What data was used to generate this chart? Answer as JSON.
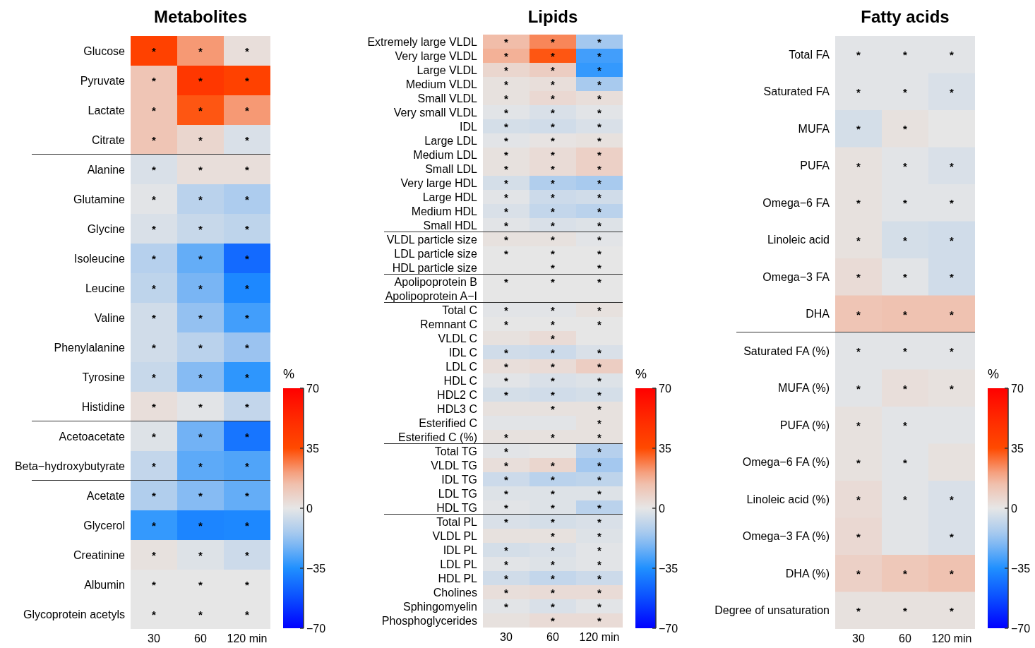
{
  "chart_data": [
    {
      "type": "heatmap",
      "title": "Metabolites",
      "categories": [
        "30",
        "60",
        "120 min"
      ],
      "y_categories": [
        "Glucose",
        "Pyruvate",
        "Lactate",
        "Citrate",
        "Alanine",
        "Glutamine",
        "Glycine",
        "Isoleucine",
        "Leucine",
        "Valine",
        "Phenylalanine",
        "Tyrosine",
        "Histidine",
        "Acetoacetate",
        "Beta−hydroxybutyrate",
        "Acetate",
        "Glycerol",
        "Creatinine",
        "Albumin",
        "Glycoprotein acetyls"
      ],
      "cells": [
        [
          40,
          22,
          3
        ],
        [
          12,
          45,
          40
        ],
        [
          12,
          33,
          22
        ],
        [
          12,
          6,
          -3
        ],
        [
          -3,
          3,
          3
        ],
        [
          -1,
          -10,
          -13
        ],
        [
          -3,
          -7,
          -9
        ],
        [
          -11,
          -25,
          -45
        ],
        [
          -9,
          -22,
          -37
        ],
        [
          -5,
          -18,
          -30
        ],
        [
          -5,
          -10,
          -17
        ],
        [
          -7,
          -20,
          -33
        ],
        [
          3,
          -1,
          -8
        ],
        [
          -2,
          -23,
          -42
        ],
        [
          -8,
          -26,
          -28
        ],
        [
          -12,
          -20,
          -25
        ],
        [
          -32,
          -38,
          -37
        ],
        [
          2,
          -2,
          -6
        ],
        [
          0,
          0,
          0
        ],
        [
          0,
          0,
          0
        ]
      ],
      "cell_labels": [
        [
          "*",
          "*",
          "*"
        ],
        [
          "*",
          "*",
          "*"
        ],
        [
          "*",
          "*",
          "*"
        ],
        [
          "*",
          "*",
          "*"
        ],
        [
          "*",
          "*",
          "*"
        ],
        [
          "*",
          "*",
          "*"
        ],
        [
          "*",
          "*",
          "*"
        ],
        [
          "*",
          "*",
          "*"
        ],
        [
          "*",
          "*",
          "*"
        ],
        [
          "*",
          "*",
          "*"
        ],
        [
          "*",
          "*",
          "*"
        ],
        [
          "*",
          "*",
          "*"
        ],
        [
          "*",
          "*",
          "*"
        ],
        [
          "*",
          "*",
          "*"
        ],
        [
          "*",
          "*",
          "*"
        ],
        [
          "*",
          "*",
          "*"
        ],
        [
          "*",
          "*",
          "*"
        ],
        [
          "*",
          "*",
          "*"
        ],
        [
          "*",
          "*",
          "*"
        ],
        [
          "*",
          "*",
          "*"
        ]
      ],
      "clabel": "%",
      "clim": [
        -70,
        70
      ],
      "cticks": [
        -70,
        -35,
        0,
        35,
        70
      ]
    },
    {
      "type": "heatmap",
      "title": "Lipids",
      "categories": [
        "30",
        "60",
        "120 min"
      ],
      "y_categories": [
        "Extremely large VLDL",
        "Very large VLDL",
        "Large VLDL",
        "Medium VLDL",
        "Small VLDL",
        "Very small VLDL",
        "IDL",
        "Large LDL",
        "Medium LDL",
        "Small LDL",
        "Very large HDL",
        "Large HDL",
        "Medium HDL",
        "Small HDL",
        "VLDL particle size",
        "LDL particle size",
        "HDL particle size",
        "Apolipoprotein B",
        "Apolipoprotein A−I",
        "Total C",
        "Remnant C",
        "VLDL C",
        "IDL C",
        "LDL C",
        "HDL C",
        "HDL2 C",
        "HDL3 C",
        "Esterified C",
        "Esterified C (%)",
        "Total TG",
        "VLDL TG",
        "IDL TG",
        "LDL TG",
        "HDL TG",
        "Total PL",
        "VLDL PL",
        "IDL PL",
        "LDL PL",
        "HDL PL",
        "Cholines",
        "Sphingomyelin",
        "Phosphoglycerides"
      ],
      "cells": [
        [
          15,
          25,
          -15
        ],
        [
          18,
          33,
          -30
        ],
        [
          6,
          9,
          -32
        ],
        [
          2,
          3,
          -14
        ],
        [
          2,
          5,
          3
        ],
        [
          -1,
          -3,
          -1
        ],
        [
          -4,
          -5,
          -3
        ],
        [
          -1,
          1,
          2
        ],
        [
          2,
          4,
          8
        ],
        [
          2,
          4,
          8
        ],
        [
          -4,
          -12,
          -14
        ],
        [
          -1,
          -6,
          -5
        ],
        [
          -3,
          -8,
          -10
        ],
        [
          -1,
          -3,
          -2
        ],
        [
          2,
          2,
          -1
        ],
        [
          0,
          0,
          0
        ],
        [
          0,
          0,
          0
        ],
        [
          0,
          0,
          0
        ],
        [
          0,
          0,
          0
        ],
        [
          -1,
          -1,
          2
        ],
        [
          0,
          0,
          0
        ],
        [
          2,
          4,
          0
        ],
        [
          -5,
          -6,
          -3
        ],
        [
          3,
          4,
          9
        ],
        [
          -1,
          -3,
          -2
        ],
        [
          -4,
          -5,
          -4
        ],
        [
          2,
          2,
          2
        ],
        [
          -1,
          -1,
          2
        ],
        [
          2,
          2,
          2
        ],
        [
          -1,
          0,
          -11
        ],
        [
          3,
          6,
          -15
        ],
        [
          -6,
          -10,
          -9
        ],
        [
          -2,
          -2,
          -2
        ],
        [
          -1,
          -2,
          -10
        ],
        [
          -3,
          -4,
          -3
        ],
        [
          2,
          2,
          -2
        ],
        [
          -4,
          -3,
          -1
        ],
        [
          -1,
          -2,
          -1
        ],
        [
          -5,
          -8,
          -6
        ],
        [
          3,
          4,
          4
        ],
        [
          -1,
          -3,
          -1
        ],
        [
          2,
          4,
          4
        ]
      ],
      "cell_labels": [
        [
          "*",
          "*",
          "*"
        ],
        [
          "*",
          "*",
          "*"
        ],
        [
          "*",
          "*",
          "*"
        ],
        [
          "*",
          "*",
          "*"
        ],
        [
          "*",
          "*",
          "*"
        ],
        [
          "*",
          "*",
          "*"
        ],
        [
          "*",
          "*",
          "*"
        ],
        [
          "*",
          "*",
          "*"
        ],
        [
          "*",
          "*",
          "*"
        ],
        [
          "*",
          "*",
          "*"
        ],
        [
          "*",
          "*",
          "*"
        ],
        [
          "*",
          "*",
          "*"
        ],
        [
          "*",
          "*",
          "*"
        ],
        [
          "*",
          "*",
          "*"
        ],
        [
          "*",
          "*",
          "*"
        ],
        [
          "*",
          "*",
          "*"
        ],
        [
          null,
          "*",
          "*"
        ],
        [
          "*",
          "*",
          "*"
        ],
        [
          null,
          null,
          null
        ],
        [
          "*",
          "*",
          "*"
        ],
        [
          "*",
          "*",
          "*"
        ],
        [
          null,
          "*",
          null
        ],
        [
          "*",
          "*",
          "*"
        ],
        [
          "*",
          "*",
          "*"
        ],
        [
          "*",
          "*",
          "*"
        ],
        [
          "*",
          "*",
          "*"
        ],
        [
          null,
          "*",
          "*"
        ],
        [
          null,
          null,
          "*"
        ],
        [
          "*",
          "*",
          "*"
        ],
        [
          "*",
          null,
          "*"
        ],
        [
          "*",
          "*",
          "*"
        ],
        [
          "*",
          "*",
          "*"
        ],
        [
          "*",
          "*",
          "*"
        ],
        [
          "*",
          "*",
          "*"
        ],
        [
          "*",
          "*",
          "*"
        ],
        [
          null,
          "*",
          "*"
        ],
        [
          "*",
          "*",
          "*"
        ],
        [
          "*",
          "*",
          "*"
        ],
        [
          "*",
          "*",
          "*"
        ],
        [
          "*",
          "*",
          "*"
        ],
        [
          "*",
          "*",
          "*"
        ],
        [
          null,
          "*",
          "*"
        ]
      ],
      "clabel": "%",
      "clim": [
        -70,
        70
      ],
      "cticks": [
        -70,
        -35,
        0,
        35,
        70
      ]
    },
    {
      "type": "heatmap",
      "title": "Fatty acids",
      "categories": [
        "30",
        "60",
        "120 min"
      ],
      "y_categories": [
        "Total FA",
        "Saturated FA",
        "MUFA",
        "PUFA",
        "Omega−6 FA",
        "Linoleic acid",
        "Omega−3 FA",
        "DHA",
        "Saturated FA (%)",
        "MUFA (%)",
        "PUFA (%)",
        "Omega−6 FA (%)",
        "Linoleic acid (%)",
        "Omega−3 FA (%)",
        "DHA (%)",
        "Degree of unsaturation"
      ],
      "cells": [
        [
          -1,
          -1,
          -1
        ],
        [
          -1,
          -1,
          -3
        ],
        [
          -4,
          2,
          0
        ],
        [
          2,
          -1,
          -3
        ],
        [
          2,
          -1,
          -1
        ],
        [
          2,
          -4,
          -5
        ],
        [
          4,
          -1,
          -5
        ],
        [
          12,
          13,
          13
        ],
        [
          -1,
          -1,
          -1
        ],
        [
          -1,
          3,
          2
        ],
        [
          2,
          -1,
          -1
        ],
        [
          2,
          -1,
          2
        ],
        [
          4,
          -1,
          -3
        ],
        [
          5,
          -1,
          -3
        ],
        [
          8,
          11,
          13
        ],
        [
          2,
          2,
          2
        ]
      ],
      "cell_labels": [
        [
          "*",
          "*",
          "*"
        ],
        [
          "*",
          "*",
          "*"
        ],
        [
          "*",
          "*",
          null
        ],
        [
          "*",
          "*",
          "*"
        ],
        [
          "*",
          "*",
          "*"
        ],
        [
          "*",
          "*",
          "*"
        ],
        [
          "*",
          "*",
          "*"
        ],
        [
          "*",
          "*",
          "*"
        ],
        [
          "*",
          "*",
          "*"
        ],
        [
          "*",
          "*",
          "*"
        ],
        [
          "*",
          "*",
          null
        ],
        [
          "*",
          "*",
          null
        ],
        [
          "*",
          "*",
          "*"
        ],
        [
          "*",
          null,
          "*"
        ],
        [
          "*",
          "*",
          "*"
        ],
        [
          "*",
          "*",
          "*"
        ]
      ],
      "clabel": "%",
      "clim": [
        -70,
        70
      ],
      "cticks": [
        -70,
        -35,
        0,
        35,
        70
      ]
    }
  ]
}
